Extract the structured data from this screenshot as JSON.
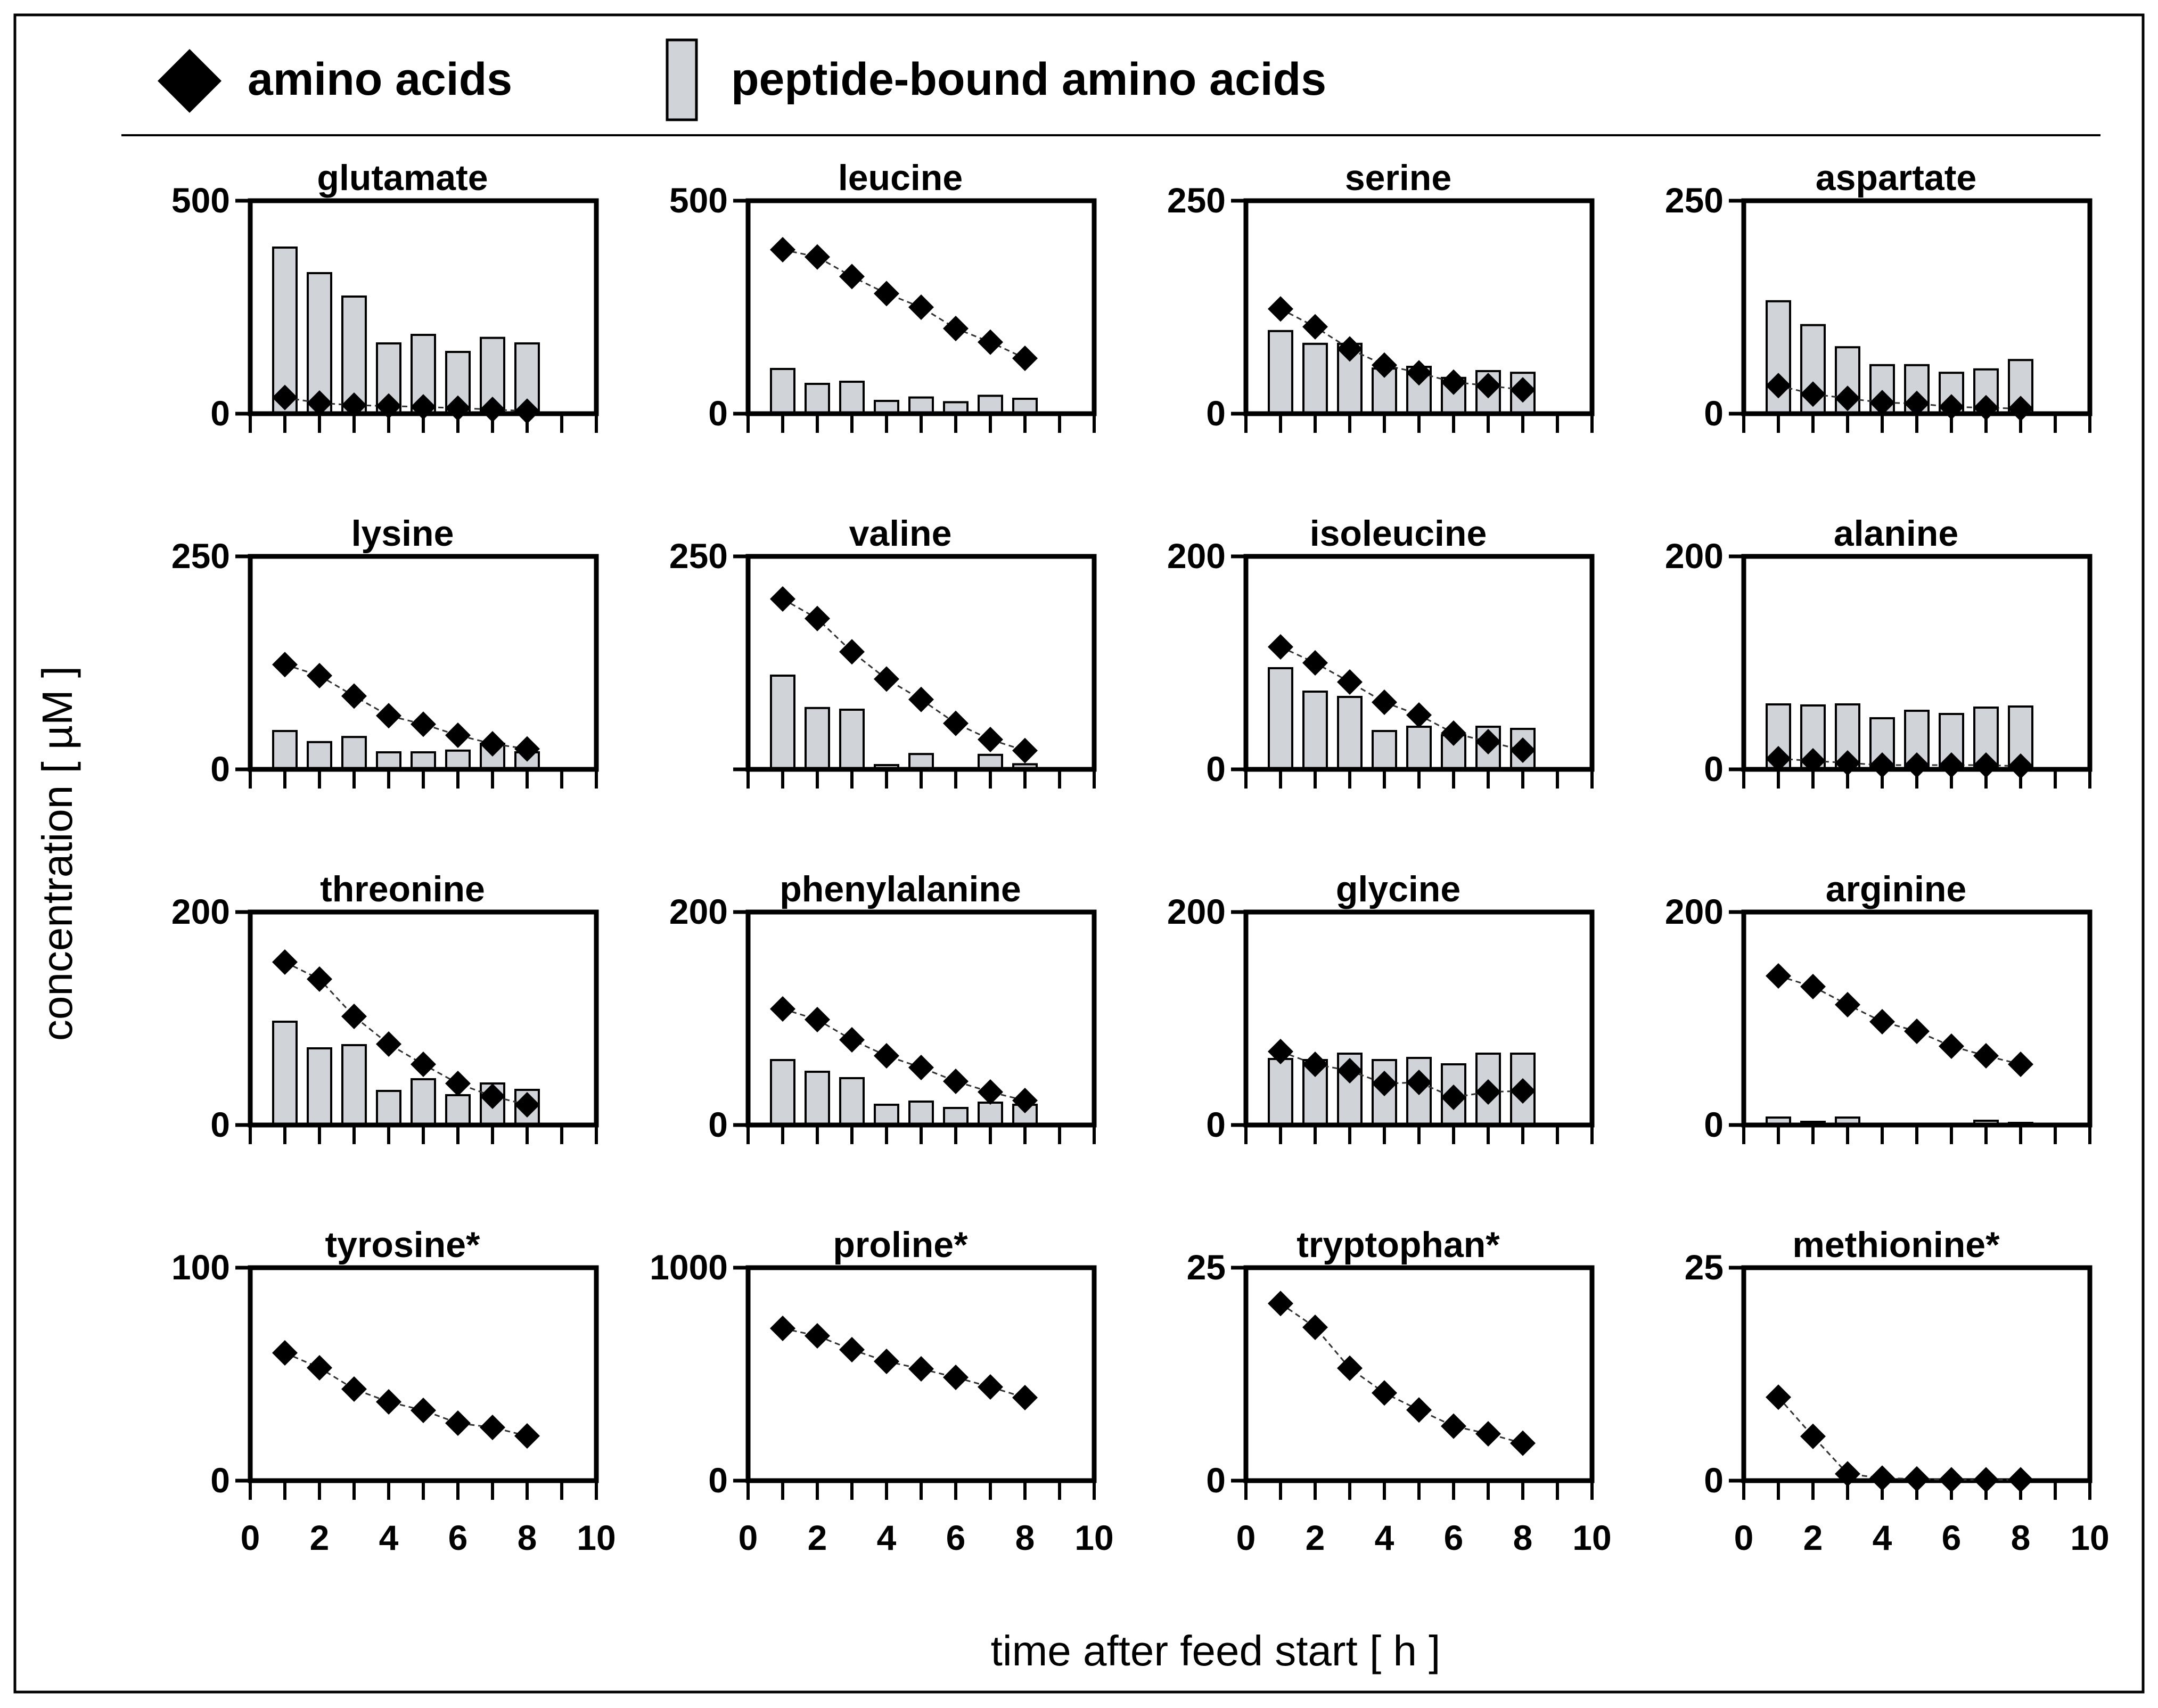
{
  "colors": {
    "bar_fill": "#d0d3d8",
    "bar_stroke": "#000000",
    "marker": "#000000",
    "line": "#333333",
    "frame": "#000000"
  },
  "legend": {
    "amino_label": "amino acids",
    "peptide_label": "peptide-bound amino acids"
  },
  "axes": {
    "xlabel": "time after feed start [ h ]",
    "ylabel": "concentration [ µM ]",
    "xticks": [
      "0",
      "2",
      "4",
      "6",
      "8",
      "10"
    ],
    "xlim": [
      0,
      10
    ]
  },
  "chart_data": [
    {
      "type": "bar+line",
      "title": "glutamate",
      "ymax": 500,
      "ytick_top": "500",
      "x": [
        1,
        2,
        3,
        4,
        5,
        6,
        7,
        8
      ],
      "bars": [
        390,
        330,
        275,
        165,
        185,
        145,
        178,
        165
      ],
      "points": [
        38,
        25,
        20,
        18,
        16,
        13,
        10,
        6
      ]
    },
    {
      "type": "bar+line",
      "title": "leucine",
      "ymax": 500,
      "ytick_top": "500",
      "x": [
        1,
        2,
        3,
        4,
        5,
        6,
        7,
        8
      ],
      "bars": [
        105,
        70,
        75,
        30,
        38,
        27,
        42,
        35
      ],
      "points": [
        385,
        368,
        322,
        282,
        250,
        200,
        168,
        130
      ]
    },
    {
      "type": "bar+line",
      "title": "serine",
      "ymax": 250,
      "ytick_top": "250",
      "x": [
        1,
        2,
        3,
        4,
        5,
        6,
        7,
        8
      ],
      "bars": [
        97,
        82,
        82,
        53,
        55,
        42,
        50,
        48
      ],
      "points": [
        123,
        102,
        76,
        57,
        48,
        37,
        33,
        28
      ]
    },
    {
      "type": "bar+line",
      "title": "aspartate",
      "ymax": 250,
      "ytick_top": "250",
      "x": [
        1,
        2,
        3,
        4,
        5,
        6,
        7,
        8
      ],
      "bars": [
        132,
        104,
        78,
        57,
        57,
        48,
        52,
        63
      ],
      "points": [
        33,
        23,
        18,
        13,
        12,
        8,
        7,
        6
      ]
    },
    {
      "type": "bar+line",
      "title": "lysine",
      "ymax": 250,
      "ytick_top": "250",
      "x": [
        1,
        2,
        3,
        4,
        5,
        6,
        7,
        8
      ],
      "bars": [
        45,
        32,
        38,
        20,
        20,
        22,
        30,
        20
      ],
      "points": [
        123,
        110,
        86,
        63,
        53,
        40,
        30,
        24
      ]
    },
    {
      "type": "bar+line",
      "title": "valine",
      "ymax": 250,
      "ytick_top": "250",
      "x": [
        1,
        2,
        3,
        4,
        5,
        6,
        7,
        8
      ],
      "bars": [
        110,
        72,
        70,
        5,
        18,
        0,
        17,
        6
      ],
      "points": [
        200,
        177,
        138,
        106,
        82,
        54,
        35,
        22
      ]
    },
    {
      "type": "bar+line",
      "title": "isoleucine",
      "ymax": 200,
      "ytick_top": "200",
      "x": [
        1,
        2,
        3,
        4,
        5,
        6,
        7,
        8
      ],
      "bars": [
        95,
        73,
        68,
        36,
        40,
        32,
        40,
        38
      ],
      "points": [
        115,
        100,
        82,
        63,
        51,
        34,
        26,
        18
      ]
    },
    {
      "type": "bar+line",
      "title": "alanine",
      "ymax": 200,
      "ytick_top": "200",
      "x": [
        1,
        2,
        3,
        4,
        5,
        6,
        7,
        8
      ],
      "bars": [
        61,
        60,
        61,
        48,
        55,
        52,
        58,
        59
      ],
      "points": [
        10,
        8,
        6,
        4,
        4,
        4,
        4,
        3
      ]
    },
    {
      "type": "bar+line",
      "title": "threonine",
      "ymax": 200,
      "ytick_top": "200",
      "x": [
        1,
        2,
        3,
        4,
        5,
        6,
        7,
        8
      ],
      "bars": [
        97,
        72,
        75,
        32,
        43,
        28,
        39,
        33
      ],
      "points": [
        153,
        137,
        102,
        76,
        57,
        39,
        27,
        19
      ]
    },
    {
      "type": "bar+line",
      "title": "phenylalanine",
      "ymax": 200,
      "ytick_top": "200",
      "x": [
        1,
        2,
        3,
        4,
        5,
        6,
        7,
        8
      ],
      "bars": [
        61,
        50,
        44,
        19,
        22,
        16,
        21,
        19
      ],
      "points": [
        109,
        99,
        80,
        65,
        54,
        41,
        31,
        23
      ]
    },
    {
      "type": "bar+line",
      "title": "glycine",
      "ymax": 200,
      "ytick_top": "200",
      "x": [
        1,
        2,
        3,
        4,
        5,
        6,
        7,
        8
      ],
      "bars": [
        62,
        61,
        67,
        61,
        63,
        57,
        67,
        67
      ],
      "points": [
        69,
        57,
        51,
        39,
        40,
        26,
        31,
        32
      ]
    },
    {
      "type": "bar+line",
      "title": "arginine",
      "ymax": 200,
      "ytick_top": "200",
      "x": [
        1,
        2,
        3,
        4,
        5,
        6,
        7,
        8
      ],
      "bars": [
        7,
        3,
        7,
        0,
        0,
        0,
        4,
        2
      ],
      "points": [
        140,
        130,
        113,
        97,
        88,
        74,
        65,
        57
      ]
    },
    {
      "type": "line",
      "title": "tyrosine*",
      "ymax": 100,
      "ytick_top": "100",
      "x": [
        1,
        2,
        3,
        4,
        5,
        6,
        7,
        8
      ],
      "bars": [],
      "points": [
        60,
        53,
        43,
        37,
        33,
        27,
        25,
        21
      ]
    },
    {
      "type": "line",
      "title": "proline*",
      "ymax": 1000,
      "ytick_top": "1000",
      "x": [
        1,
        2,
        3,
        4,
        5,
        6,
        7,
        8
      ],
      "bars": [],
      "points": [
        715,
        680,
        615,
        560,
        525,
        485,
        440,
        390
      ]
    },
    {
      "type": "line",
      "title": "tryptophan*",
      "ymax": 25,
      "ytick_top": "25",
      "x": [
        1,
        2,
        3,
        4,
        5,
        6,
        7,
        8
      ],
      "bars": [],
      "points": [
        20.8,
        18,
        13.2,
        10.3,
        8.3,
        6.4,
        5.5,
        4.4
      ]
    },
    {
      "type": "line",
      "title": "methionine*",
      "ymax": 25,
      "ytick_top": "25",
      "x": [
        1,
        2,
        3,
        4,
        5,
        6,
        7,
        8
      ],
      "bars": [],
      "points": [
        9.8,
        5.2,
        0.8,
        0.3,
        0.2,
        0.1,
        0.1,
        0.1
      ]
    }
  ]
}
